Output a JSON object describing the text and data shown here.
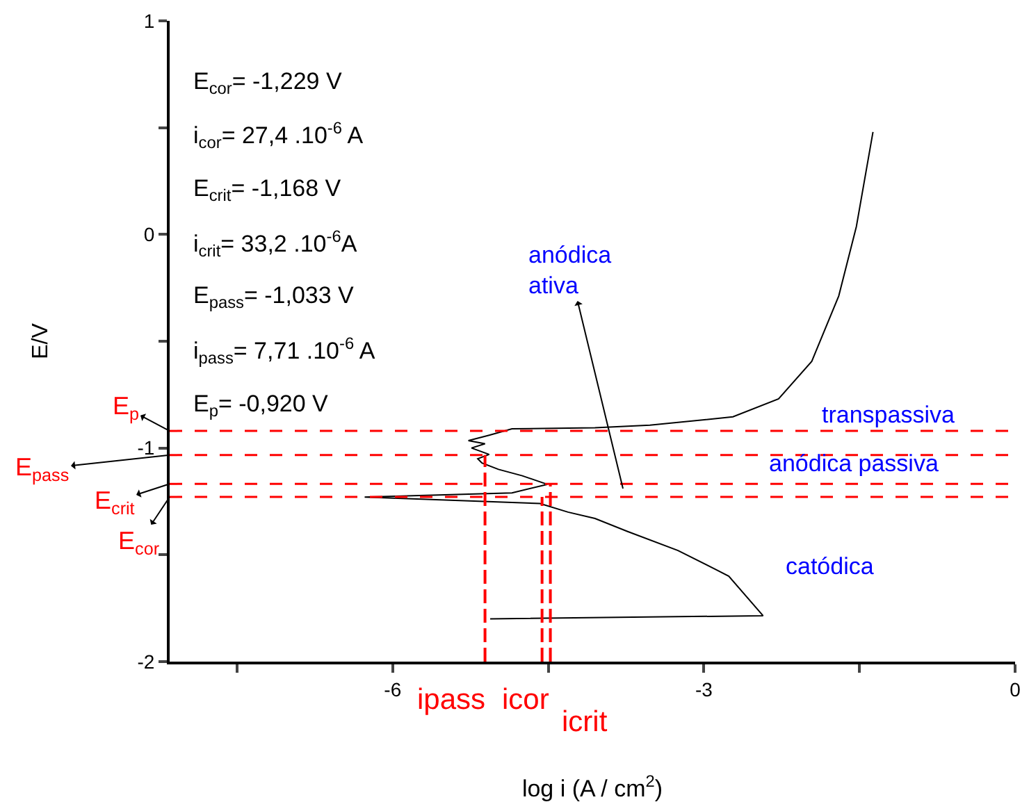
{
  "chart_data": {
    "type": "line",
    "xlabel": "log i (A / cm$^{2}$)",
    "ylabel": "E/V",
    "xlim": [
      -8.15,
      0
    ],
    "xticks": [
      {
        "value": -7.5,
        "label": null
      },
      -6,
      {
        "value": -4.5,
        "label": null
      },
      -3,
      {
        "value": -1.5,
        "label": null
      },
      0
    ],
    "ylim": [
      -2,
      1
    ],
    "yticks": [
      -2,
      {
        "value": -1.5,
        "label": null
      },
      -1,
      {
        "value": -0.5,
        "label": null
      },
      0,
      {
        "value": 0.5,
        "label": null
      },
      1
    ],
    "grid": false,
    "marker": "none",
    "line_style": "solid",
    "series": [
      {
        "color": "#000000",
        "x": [
          -5.06,
          -2.43,
          -2.76,
          -2.88,
          -3.25,
          -3.74,
          -4.05,
          -4.31,
          -4.58,
          -6.27,
          -4.85,
          -4.51,
          -4.75,
          -4.98,
          -5.14,
          -5.18,
          -5.07,
          -5.24,
          -5.11,
          -5.27,
          -5.07,
          -4.85,
          -4.05,
          -3.52,
          -2.72,
          -2.28,
          -1.96,
          -1.7,
          -1.53,
          -1.37
        ],
        "values": [
          -1.8,
          -1.785,
          -1.6,
          -1.57,
          -1.48,
          -1.39,
          -1.33,
          -1.3,
          -1.26,
          -1.23,
          -1.21,
          -1.17,
          -1.13,
          -1.1,
          -1.07,
          -1.05,
          -1.03,
          -1.0,
          -0.98,
          -0.965,
          -0.94,
          -0.91,
          -0.905,
          -0.893,
          -0.854,
          -0.77,
          -0.594,
          -0.288,
          0.037,
          0.48
        ]
      },
      {
        "color": "#ff0000",
        "line_style": "dashed",
        "x": [
          -5.11,
          -5.11
        ],
        "values": [
          -2,
          -1.033
        ]
      },
      {
        "color": "#ff0000",
        "line_style": "dashed",
        "x": [
          -4.56,
          -4.56
        ],
        "values": [
          -2,
          -1.229
        ]
      },
      {
        "color": "#ff0000",
        "line_style": "dashed",
        "x": [
          -4.48,
          -4.48
        ],
        "values": [
          -2,
          -1.168
        ]
      }
    ],
    "ref_lines": [
      {
        "axis": "y",
        "value": -0.92,
        "label": "E$_{p}$",
        "color": "#ff0000",
        "line_style": "dotted"
      },
      {
        "axis": "y",
        "value": -1.033,
        "label": "E$_{pass}$",
        "color": "#ff0000",
        "line_style": "dotted"
      },
      {
        "axis": "y",
        "value": -1.168,
        "label": "E$_{crit}$",
        "color": "#ff0000",
        "line_style": "dotted"
      },
      {
        "axis": "y",
        "value": -1.229,
        "label": "E$_{cor}$",
        "color": "#ff0000",
        "line_style": "dotted"
      }
    ],
    "annotations": [
      "E$_{cor}$= -1,229 V",
      "i$_{cor}$= 27,4 .10$^{-6}$ A",
      "E$_{crit}$= -1,168 V",
      "i$_{crit}$= 33,2 .10$^{-6}$A",
      "E$_{pass}$= -1,033 V",
      "i$_{pass}$= 7,71 .10$^{-6}$ A",
      "E$_{p}$= -0,920 V",
      {
        "text": "anódica\nativa",
        "x": -3.78,
        "y": -1.19
      },
      "transpassiva",
      "anódica passiva",
      "catódica",
      {
        "text": "ipass",
        "x": -5.11,
        "y": -2
      },
      {
        "text": "icor",
        "x": -4.56,
        "y": -2
      },
      {
        "text": "icrit",
        "x": -4.48,
        "y": -2
      }
    ]
  }
}
